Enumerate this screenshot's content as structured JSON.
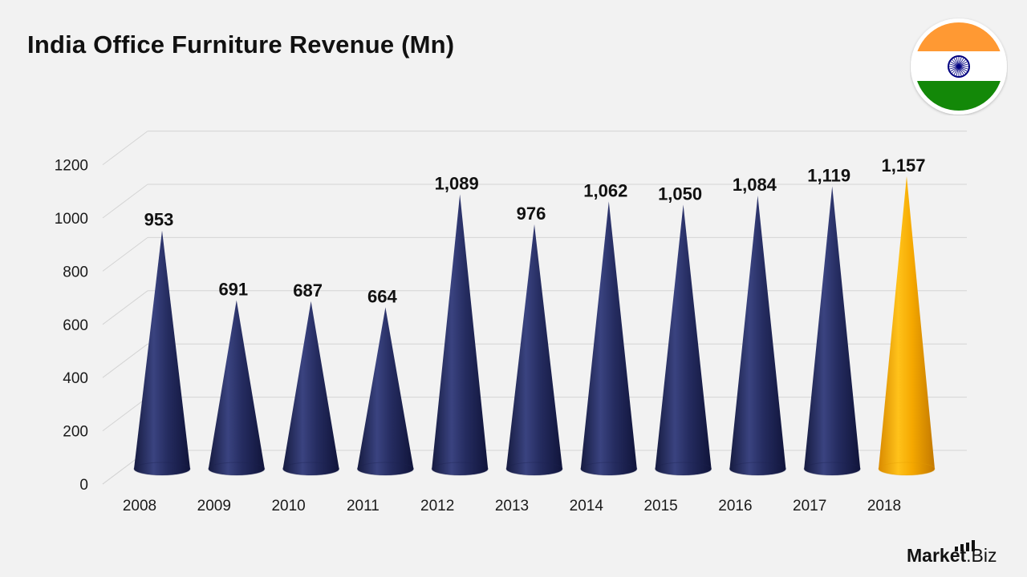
{
  "page": {
    "title": "India Office Furniture Revenue (Mn)",
    "brand_strong": "Market",
    "brand_rest": ".Biz"
  },
  "flag": {
    "top_color": "#ff9933",
    "middle_color": "#ffffff",
    "bottom_color": "#138808",
    "chakra_color": "#000080"
  },
  "chart_data": {
    "type": "bar",
    "title": "India Office Furniture Revenue (Mn)",
    "categories": [
      "2008",
      "2009",
      "2010",
      "2011",
      "2012",
      "2013",
      "2014",
      "2015",
      "2016",
      "2017",
      "2018"
    ],
    "values": [
      953,
      691,
      687,
      664,
      1089,
      976,
      1062,
      1050,
      1084,
      1119,
      1157
    ],
    "data_labels": [
      "953",
      "691",
      "687",
      "664",
      "1,089",
      "976",
      "1,062",
      "1,050",
      "1,084",
      "1,119",
      "1,157"
    ],
    "ylim": [
      0,
      1200
    ],
    "yticks": [
      0,
      200,
      400,
      600,
      800,
      1000,
      1200
    ],
    "grid": true,
    "shape": "cone",
    "colors": {
      "default": "#22295a",
      "highlight": "#f5a800",
      "highlight_category": "2018"
    }
  }
}
